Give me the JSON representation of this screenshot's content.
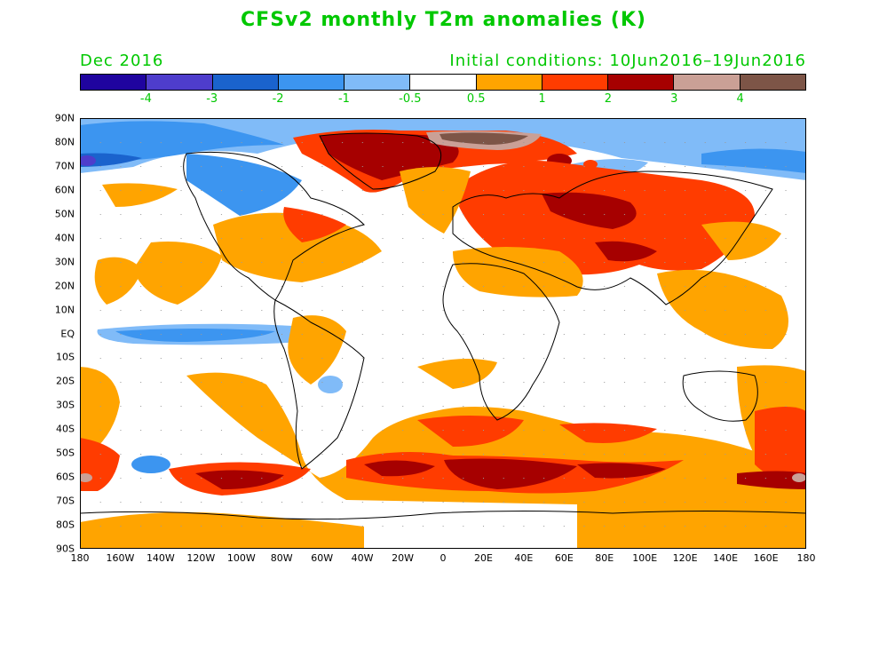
{
  "title": "CFSv2 monthly T2m anomalies (K)",
  "valid_month": "Dec 2016",
  "initial_conditions": "Initial conditions: 10Jun2016–19Jun2016",
  "colorbar": {
    "colors": [
      "#1f049f",
      "#4e3dcc",
      "#1a63cd",
      "#3c95f0",
      "#80bbf8",
      "#ffffff",
      "#ffa400",
      "#ff3c00",
      "#a60000",
      "#caa096",
      "#7d5547"
    ],
    "labels": [
      "-4",
      "-3",
      "-2",
      "-1",
      "-0.5",
      "0.5",
      "1",
      "2",
      "3",
      "4"
    ]
  },
  "latitude_labels": [
    "90N",
    "80N",
    "70N",
    "60N",
    "50N",
    "40N",
    "30N",
    "20N",
    "10N",
    "EQ",
    "10S",
    "20S",
    "30S",
    "40S",
    "50S",
    "60S",
    "70S",
    "80S",
    "90S"
  ],
  "longitude_labels": [
    "180",
    "160W",
    "140W",
    "120W",
    "100W",
    "80W",
    "60W",
    "40W",
    "20W",
    "0",
    "20E",
    "40E",
    "60E",
    "80E",
    "100E",
    "120E",
    "140E",
    "160E",
    "180"
  ],
  "map_colors": {
    "orange": "#ffa400",
    "red": "#ff3c00",
    "darkred": "#a60000",
    "pink": "#caa096",
    "brown": "#7d5547",
    "lightblue": "#80bbf8",
    "midblue": "#3c95f0",
    "blue": "#1a63cd",
    "indigo": "#4e3dcc",
    "coast": "#000000"
  }
}
